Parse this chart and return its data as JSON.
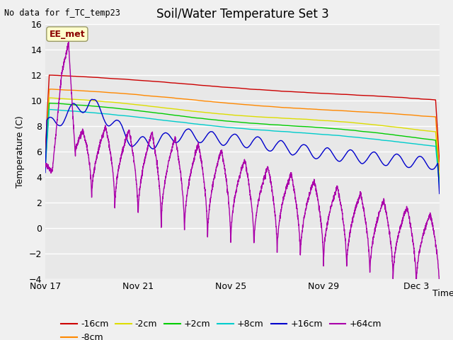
{
  "title": "Soil/Water Temperature Set 3",
  "xlabel": "Time",
  "ylabel": "Temperature (C)",
  "annotation": "No data for f_TC_temp23",
  "legend_label": "EE_met",
  "ylim": [
    -4,
    16
  ],
  "yticks": [
    -4,
    -2,
    0,
    2,
    4,
    6,
    8,
    10,
    12,
    14,
    16
  ],
  "x_tick_labels": [
    "Nov 17",
    "Nov 21",
    "Nov 25",
    "Nov 29",
    "Dec 3"
  ],
  "x_tick_positions": [
    0,
    4,
    8,
    12,
    16
  ],
  "plot_bg_color": "#e8e8e8",
  "fig_bg_color": "#f0f0f0",
  "series_colors": {
    "-16cm": "#cc0000",
    "-8cm": "#ff8800",
    "-2cm": "#dddd00",
    "+2cm": "#00cc00",
    "+8cm": "#00cccc",
    "+16cm": "#0000cc",
    "+64cm": "#aa00aa"
  },
  "title_fontsize": 12,
  "axis_fontsize": 9,
  "tick_fontsize": 9,
  "legend_fontsize": 9
}
